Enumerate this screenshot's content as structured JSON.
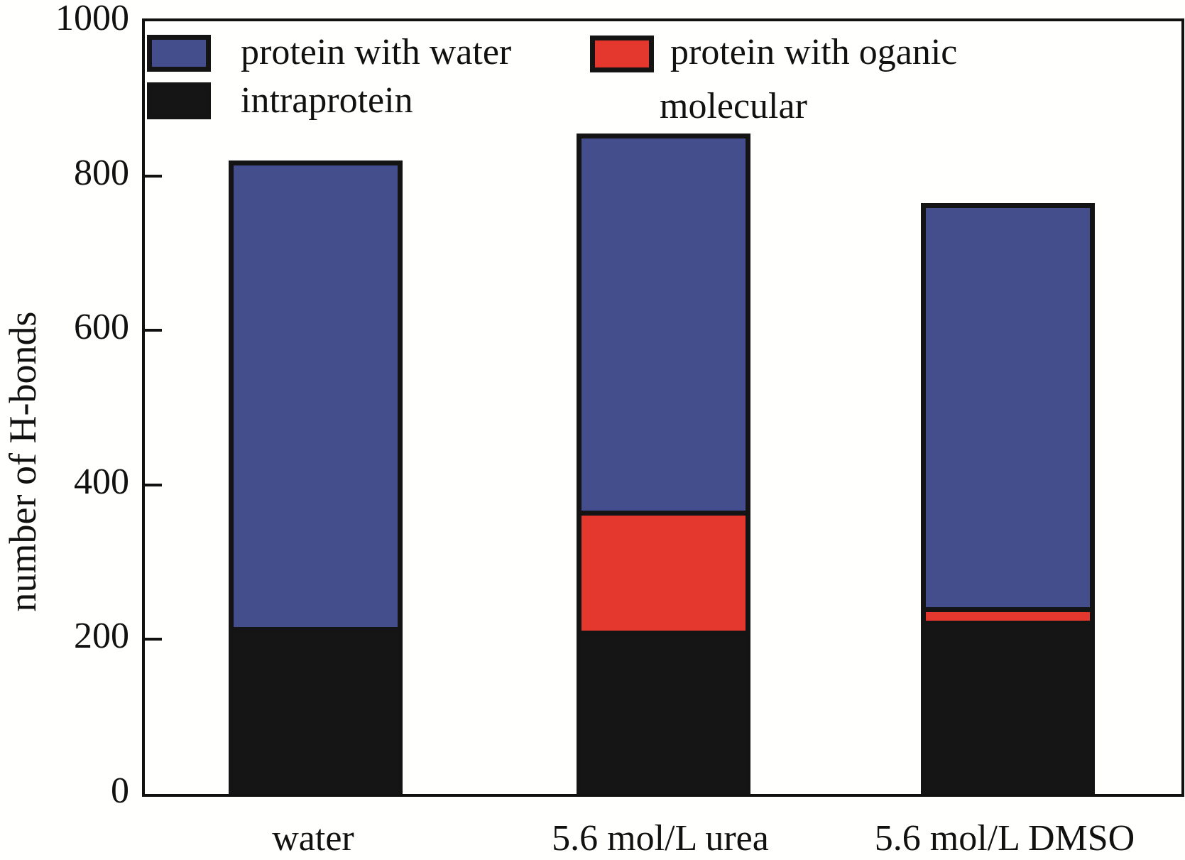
{
  "figure": {
    "background": "#fffffe"
  },
  "colors": {
    "protein_with_water": "#454e8c",
    "protein_with_organic": "#e4382e",
    "intraprotein": "#151515",
    "axis": "#111111"
  },
  "axes": {
    "y_title": "number of H-bonds",
    "y_tick_labels": [
      "0",
      "200",
      "400",
      "600",
      "800",
      "1000"
    ]
  },
  "legend": {
    "item1_label": "protein with water",
    "item2_label": "intraprotein",
    "item3_label_line1": "protein with oganic",
    "item3_label_line2": "molecular"
  },
  "chart_data": {
    "type": "bar",
    "stacked": true,
    "categories": [
      "water",
      "5.6 mol/L urea",
      "5.6 mol/L DMSO"
    ],
    "series": [
      {
        "name": "intraprotein",
        "color": "#151515",
        "values": [
          210,
          205,
          218
        ]
      },
      {
        "name": "protein with oganic molecular",
        "color": "#e4382e",
        "values": [
          0,
          155,
          17
        ]
      },
      {
        "name": "protein with water",
        "color": "#454e8c",
        "values": [
          610,
          495,
          530
        ]
      }
    ],
    "totals": [
      820,
      855,
      765
    ],
    "title": "",
    "xlabel": "",
    "ylabel": "number of H-bonds",
    "ylim": [
      0,
      1000
    ],
    "yticks": [
      0,
      200,
      400,
      600,
      800,
      1000
    ],
    "grid": false,
    "legend_position": "top-left-inside"
  }
}
